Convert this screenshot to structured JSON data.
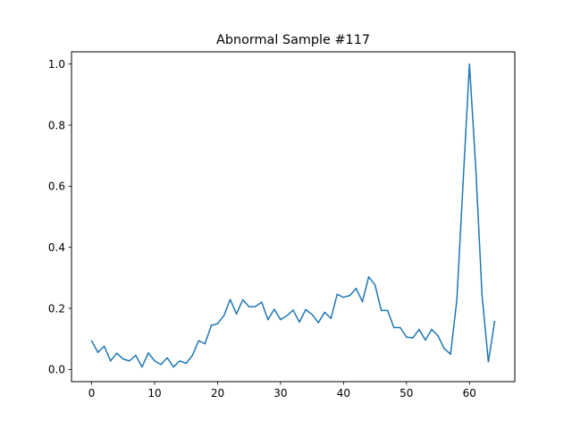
{
  "chart_data": {
    "type": "line",
    "title": "Abnormal Sample #117",
    "xlabel": "",
    "ylabel": "",
    "xlim": [
      -3.2,
      67.2
    ],
    "ylim": [
      -0.04,
      1.04
    ],
    "xticks": [
      0,
      10,
      20,
      30,
      40,
      50,
      60
    ],
    "xtick_labels": [
      "0",
      "10",
      "20",
      "30",
      "40",
      "50",
      "60"
    ],
    "yticks": [
      0.0,
      0.2,
      0.4,
      0.6,
      0.8,
      1.0
    ],
    "ytick_labels": [
      "0.0",
      "0.2",
      "0.4",
      "0.6",
      "0.8",
      "1.0"
    ],
    "grid": false,
    "series": [
      {
        "color": "#1f77b4",
        "x": [
          0,
          1,
          2,
          3,
          4,
          5,
          6,
          7,
          8,
          9,
          10,
          11,
          12,
          13,
          14,
          15,
          16,
          17,
          18,
          19,
          20,
          21,
          22,
          23,
          24,
          25,
          26,
          27,
          28,
          29,
          30,
          31,
          32,
          33,
          34,
          35,
          36,
          37,
          38,
          39,
          40,
          41,
          42,
          43,
          44,
          45,
          46,
          47,
          48,
          49,
          50,
          51,
          52,
          53,
          54,
          55,
          56,
          57,
          58,
          59,
          60,
          61,
          62,
          63,
          64
        ],
        "values": [
          0.093,
          0.056,
          0.076,
          0.028,
          0.053,
          0.034,
          0.028,
          0.046,
          0.008,
          0.054,
          0.028,
          0.016,
          0.038,
          0.008,
          0.028,
          0.02,
          0.046,
          0.094,
          0.084,
          0.144,
          0.15,
          0.176,
          0.229,
          0.182,
          0.228,
          0.205,
          0.206,
          0.22,
          0.163,
          0.197,
          0.163,
          0.176,
          0.194,
          0.155,
          0.196,
          0.18,
          0.153,
          0.187,
          0.167,
          0.246,
          0.236,
          0.242,
          0.265,
          0.222,
          0.303,
          0.277,
          0.193,
          0.193,
          0.137,
          0.137,
          0.106,
          0.103,
          0.131,
          0.096,
          0.131,
          0.11,
          0.068,
          0.05,
          0.228,
          0.617,
          1.0,
          0.66,
          0.243,
          0.025,
          0.157
        ]
      }
    ]
  }
}
